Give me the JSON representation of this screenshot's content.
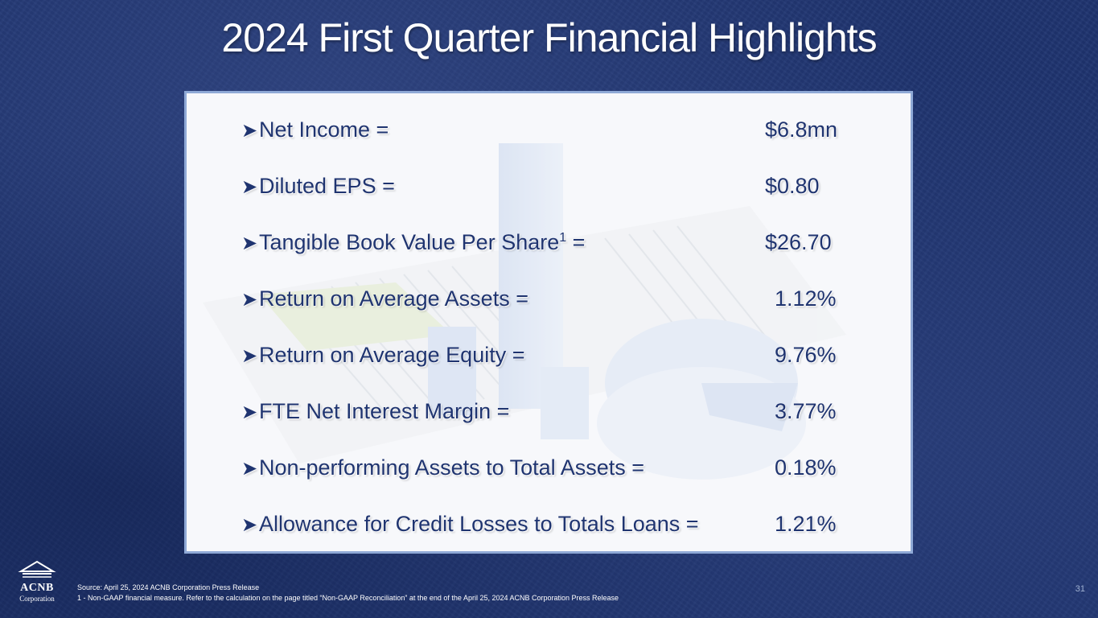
{
  "title": "2024 First Quarter Financial Highlights",
  "highlights": [
    {
      "label": "Net Income =",
      "value": "$6.8mn",
      "sup": ""
    },
    {
      "label": "Diluted EPS =",
      "value": "$0.80",
      "sup": ""
    },
    {
      "label": "Tangible Book Value Per Share",
      "value": "$26.70",
      "sup": "1",
      "suffix": " ="
    },
    {
      "label": "Return on Average Assets =",
      "value": "1.12%",
      "sup": ""
    },
    {
      "label": "Return on Average Equity =",
      "value": "9.76%",
      "sup": ""
    },
    {
      "label": "FTE Net Interest Margin =",
      "value": "3.77%",
      "sup": ""
    },
    {
      "label": "Non-performing Assets to Total Assets =",
      "value": "0.18%",
      "sup": ""
    },
    {
      "label": "Allowance for Credit Losses to Totals Loans =",
      "value": "1.21%",
      "sup": ""
    }
  ],
  "footer": {
    "source_line": "Source:  April 25, 2024 ACNB Corporation Press Release",
    "note_line": "1 - Non-GAAP financial measure. Refer to the calculation on the page titled “Non-GAAP Reconciliation” at the end of the April 25, 2024 ACNB Corporation Press Release",
    "page_number": "31"
  },
  "logo": {
    "name": "ACNB",
    "sub": "Corporation"
  },
  "colors": {
    "background": "#1f3470",
    "text": "#1f3470",
    "panel_border": "#8fa9d6"
  }
}
